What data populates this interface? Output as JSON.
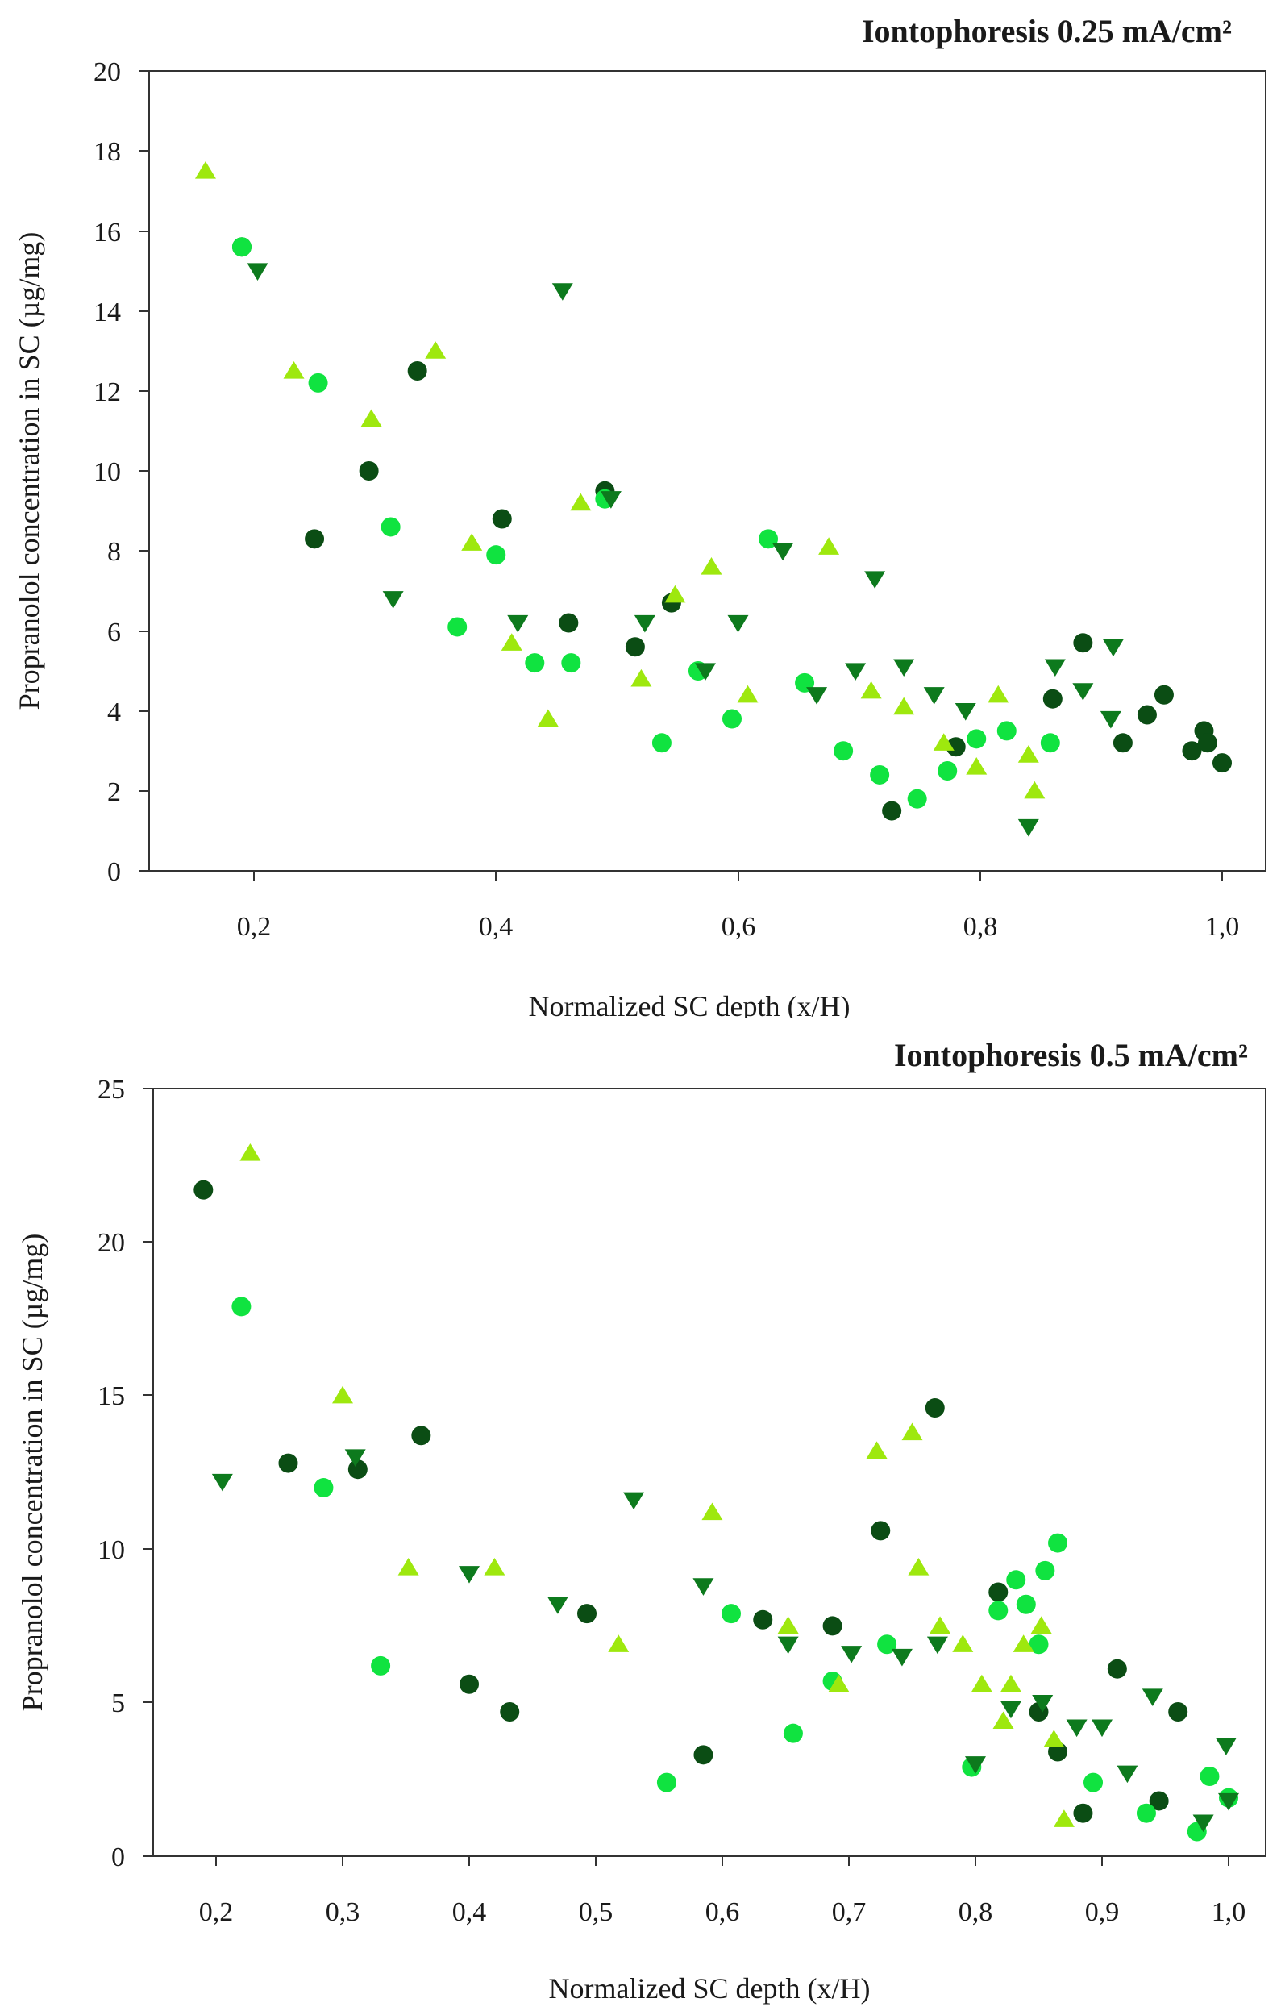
{
  "chart_data": [
    {
      "type": "scatter",
      "title": "Iontophoresis 0.25 mA/cm²",
      "xlabel": "Normalized SC depth (x/H)",
      "ylabel": "Propranolol concentration in SC (µg/mg)",
      "xlim": [
        0.12,
        1.03
      ],
      "ylim": [
        0,
        20
      ],
      "xticks": [
        0.2,
        0.4,
        0.6,
        0.8,
        1.0
      ],
      "xtick_labels": [
        "0,2",
        "0,4",
        "0,6",
        "0,8",
        "1,0"
      ],
      "yticks": [
        0,
        2,
        4,
        6,
        8,
        10,
        12,
        14,
        16,
        18,
        20
      ],
      "ytick_labels": [
        "0",
        "2",
        "4",
        "6",
        "8",
        "10",
        "12",
        "14",
        "16",
        "18",
        "20"
      ],
      "grid": false,
      "series": [
        {
          "name": "dark green circles",
          "marker": "circle",
          "color": "#0b4d14",
          "points": [
            [
              0.19,
              15.6
            ],
            [
              0.25,
              8.3
            ],
            [
              0.295,
              10
            ],
            [
              0.335,
              12.5
            ],
            [
              0.405,
              8.8
            ],
            [
              0.46,
              6.2
            ],
            [
              0.49,
              9.5
            ],
            [
              0.515,
              5.6
            ],
            [
              0.545,
              6.7
            ],
            [
              0.727,
              1.5
            ],
            [
              0.78,
              3.1
            ],
            [
              0.86,
              4.3
            ],
            [
              0.885,
              5.7
            ],
            [
              0.918,
              3.2
            ],
            [
              0.938,
              3.9
            ],
            [
              0.952,
              4.4
            ],
            [
              0.975,
              3
            ],
            [
              0.985,
              3.5
            ],
            [
              0.988,
              3.2
            ],
            [
              1.0,
              2.7
            ]
          ]
        },
        {
          "name": "bright green circles",
          "marker": "circle",
          "color": "#10e340",
          "points": [
            [
              0.19,
              15.6
            ],
            [
              0.253,
              12.2
            ],
            [
              0.313,
              8.6
            ],
            [
              0.368,
              6.1
            ],
            [
              0.4,
              7.9
            ],
            [
              0.432,
              5.2
            ],
            [
              0.462,
              5.2
            ],
            [
              0.49,
              9.3
            ],
            [
              0.537,
              3.2
            ],
            [
              0.567,
              5
            ],
            [
              0.595,
              3.8
            ],
            [
              0.625,
              8.3
            ],
            [
              0.655,
              4.7
            ],
            [
              0.687,
              3
            ],
            [
              0.717,
              2.4
            ],
            [
              0.748,
              1.8
            ],
            [
              0.773,
              2.5
            ],
            [
              0.797,
              3.3
            ],
            [
              0.822,
              3.5
            ],
            [
              0.858,
              3.2
            ]
          ]
        },
        {
          "name": "medium green down triangles",
          "marker": "triangle-down",
          "color": "#0d7a1d",
          "points": [
            [
              0.203,
              15
            ],
            [
              0.315,
              6.8
            ],
            [
              0.418,
              6.2
            ],
            [
              0.455,
              14.5
            ],
            [
              0.495,
              9.3
            ],
            [
              0.523,
              6.2
            ],
            [
              0.573,
              5
            ],
            [
              0.6,
              6.2
            ],
            [
              0.637,
              8
            ],
            [
              0.665,
              4.4
            ],
            [
              0.697,
              5
            ],
            [
              0.713,
              7.3
            ],
            [
              0.737,
              5.1
            ],
            [
              0.762,
              4.4
            ],
            [
              0.788,
              4
            ],
            [
              0.84,
              1.1
            ],
            [
              0.862,
              5.1
            ],
            [
              0.885,
              4.5
            ],
            [
              0.908,
              3.8
            ],
            [
              0.91,
              5.6
            ]
          ]
        },
        {
          "name": "yellow-green up triangles",
          "marker": "triangle-up",
          "color": "#9ee80e",
          "points": [
            [
              0.16,
              17.5
            ],
            [
              0.233,
              12.5
            ],
            [
              0.297,
              11.3
            ],
            [
              0.35,
              13
            ],
            [
              0.38,
              8.2
            ],
            [
              0.413,
              5.7
            ],
            [
              0.443,
              3.8
            ],
            [
              0.47,
              9.2
            ],
            [
              0.52,
              4.8
            ],
            [
              0.548,
              6.9
            ],
            [
              0.578,
              7.6
            ],
            [
              0.608,
              4.4
            ],
            [
              0.675,
              8.1
            ],
            [
              0.71,
              4.5
            ],
            [
              0.737,
              4.1
            ],
            [
              0.77,
              3.2
            ],
            [
              0.797,
              2.6
            ],
            [
              0.815,
              4.4
            ],
            [
              0.84,
              2.9
            ],
            [
              0.845,
              2
            ]
          ]
        }
      ]
    },
    {
      "type": "scatter",
      "title": "Iontophoresis 0.5 mA/cm²",
      "xlabel": "Normalized SC depth (x/H)",
      "ylabel": "Propranolol concentration in SC (µg/mg)",
      "xlim": [
        0.15,
        1.03
      ],
      "ylim": [
        0,
        25
      ],
      "xticks": [
        0.2,
        0.3,
        0.4,
        0.5,
        0.6,
        0.7,
        0.8,
        0.9,
        1.0
      ],
      "xtick_labels": [
        "0,2",
        "0,3",
        "0,4",
        "0,5",
        "0,6",
        "0,7",
        "0,8",
        "0,9",
        "1,0"
      ],
      "yticks": [
        0,
        5,
        10,
        15,
        20,
        25
      ],
      "ytick_labels": [
        "0",
        "5",
        "10",
        "15",
        "20",
        "25"
      ],
      "grid": false,
      "series": [
        {
          "name": "dark green circles",
          "marker": "circle",
          "color": "#0b4d14",
          "points": [
            [
              0.19,
              21.7
            ],
            [
              0.257,
              12.8
            ],
            [
              0.312,
              12.6
            ],
            [
              0.362,
              13.7
            ],
            [
              0.4,
              5.6
            ],
            [
              0.432,
              4.7
            ],
            [
              0.493,
              7.9
            ],
            [
              0.585,
              3.3
            ],
            [
              0.632,
              7.7
            ],
            [
              0.687,
              7.5
            ],
            [
              0.725,
              10.6
            ],
            [
              0.768,
              14.6
            ],
            [
              0.818,
              8.6
            ],
            [
              0.85,
              4.7
            ],
            [
              0.865,
              3.4
            ],
            [
              0.885,
              1.4
            ],
            [
              0.912,
              6.1
            ],
            [
              0.945,
              1.8
            ],
            [
              0.96,
              4.7
            ]
          ]
        },
        {
          "name": "bright green circles",
          "marker": "circle",
          "color": "#10e340",
          "points": [
            [
              0.22,
              17.9
            ],
            [
              0.285,
              12
            ],
            [
              0.33,
              6.2
            ],
            [
              0.556,
              2.4
            ],
            [
              0.607,
              7.9
            ],
            [
              0.656,
              4
            ],
            [
              0.687,
              5.7
            ],
            [
              0.73,
              6.9
            ],
            [
              0.797,
              2.9
            ],
            [
              0.818,
              8
            ],
            [
              0.832,
              9
            ],
            [
              0.84,
              8.2
            ],
            [
              0.85,
              6.9
            ],
            [
              0.855,
              9.3
            ],
            [
              0.865,
              10.2
            ],
            [
              0.893,
              2.4
            ],
            [
              0.935,
              1.4
            ],
            [
              0.975,
              0.8
            ],
            [
              0.985,
              2.6
            ],
            [
              1.0,
              1.9
            ]
          ]
        },
        {
          "name": "medium green down triangles",
          "marker": "triangle-down",
          "color": "#0d7a1d",
          "points": [
            [
              0.205,
              12.2
            ],
            [
              0.31,
              13
            ],
            [
              0.4,
              9.2
            ],
            [
              0.47,
              8.2
            ],
            [
              0.53,
              11.6
            ],
            [
              0.585,
              8.8
            ],
            [
              0.652,
              6.9
            ],
            [
              0.702,
              6.6
            ],
            [
              0.742,
              6.5
            ],
            [
              0.77,
              6.9
            ],
            [
              0.8,
              3
            ],
            [
              0.828,
              4.8
            ],
            [
              0.853,
              5
            ],
            [
              0.88,
              4.2
            ],
            [
              0.9,
              4.2
            ],
            [
              0.92,
              2.7
            ],
            [
              0.94,
              5.2
            ],
            [
              0.98,
              1.1
            ],
            [
              0.998,
              3.6
            ],
            [
              1.0,
              1.8
            ]
          ]
        },
        {
          "name": "yellow-green up triangles",
          "marker": "triangle-up",
          "color": "#9ee80e",
          "points": [
            [
              0.227,
              22.9
            ],
            [
              0.3,
              15
            ],
            [
              0.352,
              9.4
            ],
            [
              0.42,
              9.4
            ],
            [
              0.518,
              6.9
            ],
            [
              0.592,
              11.2
            ],
            [
              0.652,
              7.5
            ],
            [
              0.692,
              5.6
            ],
            [
              0.722,
              13.2
            ],
            [
              0.75,
              13.8
            ],
            [
              0.755,
              9.4
            ],
            [
              0.772,
              7.5
            ],
            [
              0.79,
              6.9
            ],
            [
              0.805,
              5.6
            ],
            [
              0.822,
              4.4
            ],
            [
              0.828,
              5.6
            ],
            [
              0.838,
              6.9
            ],
            [
              0.852,
              7.5
            ],
            [
              0.862,
              3.8
            ],
            [
              0.87,
              1.2
            ]
          ]
        }
      ]
    }
  ]
}
